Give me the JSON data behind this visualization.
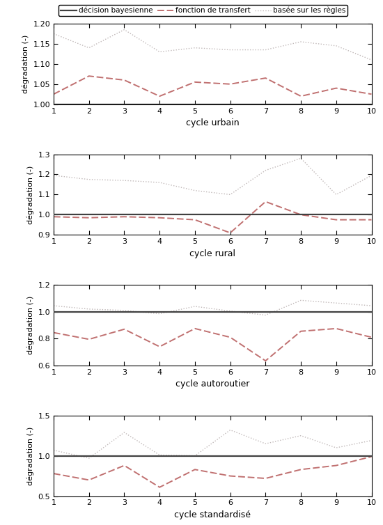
{
  "x": [
    1,
    2,
    3,
    4,
    5,
    6,
    7,
    8,
    9,
    10
  ],
  "subplots": [
    {
      "xlabel": "cycle urbain",
      "ylim": [
        1.0,
        1.2
      ],
      "yticks": [
        1.0,
        1.05,
        1.1,
        1.15,
        1.2
      ],
      "bayes": [
        1.0,
        1.0,
        1.0,
        1.0,
        1.0,
        1.0,
        1.0,
        1.0,
        1.0,
        1.0
      ],
      "transfer": [
        1.025,
        1.07,
        1.06,
        1.02,
        1.055,
        1.05,
        1.065,
        1.02,
        1.04,
        1.025
      ],
      "rules": [
        1.175,
        1.14,
        1.185,
        1.13,
        1.14,
        1.135,
        1.135,
        1.155,
        1.145,
        1.11
      ]
    },
    {
      "xlabel": "cycle rural",
      "ylim": [
        0.9,
        1.3
      ],
      "yticks": [
        0.9,
        1.0,
        1.1,
        1.2,
        1.3
      ],
      "bayes": [
        1.0,
        1.0,
        1.0,
        1.0,
        1.0,
        1.0,
        1.0,
        1.0,
        1.0,
        1.0
      ],
      "transfer": [
        0.99,
        0.985,
        0.99,
        0.985,
        0.975,
        0.91,
        1.065,
        1.0,
        0.975,
        0.975
      ],
      "rules": [
        1.195,
        1.175,
        1.17,
        1.16,
        1.12,
        1.1,
        1.22,
        1.28,
        1.1,
        1.195
      ]
    },
    {
      "xlabel": "cycle autoroutier",
      "ylim": [
        0.6,
        1.2
      ],
      "yticks": [
        0.6,
        0.8,
        1.0,
        1.2
      ],
      "bayes": [
        1.0,
        1.0,
        1.0,
        1.0,
        1.0,
        1.0,
        1.0,
        1.0,
        1.0,
        1.0
      ],
      "transfer": [
        0.845,
        0.795,
        0.87,
        0.74,
        0.875,
        0.81,
        0.635,
        0.855,
        0.875,
        0.81
      ],
      "rules": [
        1.045,
        1.02,
        1.01,
        0.985,
        1.04,
        1.005,
        0.975,
        1.085,
        1.065,
        1.045
      ]
    },
    {
      "xlabel": "cycle standardisé",
      "ylim": [
        0.5,
        1.5
      ],
      "yticks": [
        0.5,
        1.0,
        1.5
      ],
      "bayes": [
        1.0,
        1.0,
        1.0,
        1.0,
        1.0,
        1.0,
        1.0,
        1.0,
        1.0,
        1.0
      ],
      "transfer": [
        0.78,
        0.7,
        0.88,
        0.61,
        0.83,
        0.75,
        0.72,
        0.83,
        0.88,
        0.99
      ],
      "rules": [
        1.07,
        0.97,
        1.29,
        1.01,
        1.0,
        1.32,
        1.15,
        1.25,
        1.1,
        1.19
      ]
    }
  ],
  "ylabel": "dégradation (-)",
  "bayes_color": "#404040",
  "transfer_color": "#c07070",
  "rules_color": "#c0b8b8",
  "bayes_label": "décision bayesienne",
  "transfer_label": "fonction de transfert",
  "rules_label": "basée sur les règles",
  "figsize": [
    5.5,
    7.54
  ],
  "dpi": 100
}
